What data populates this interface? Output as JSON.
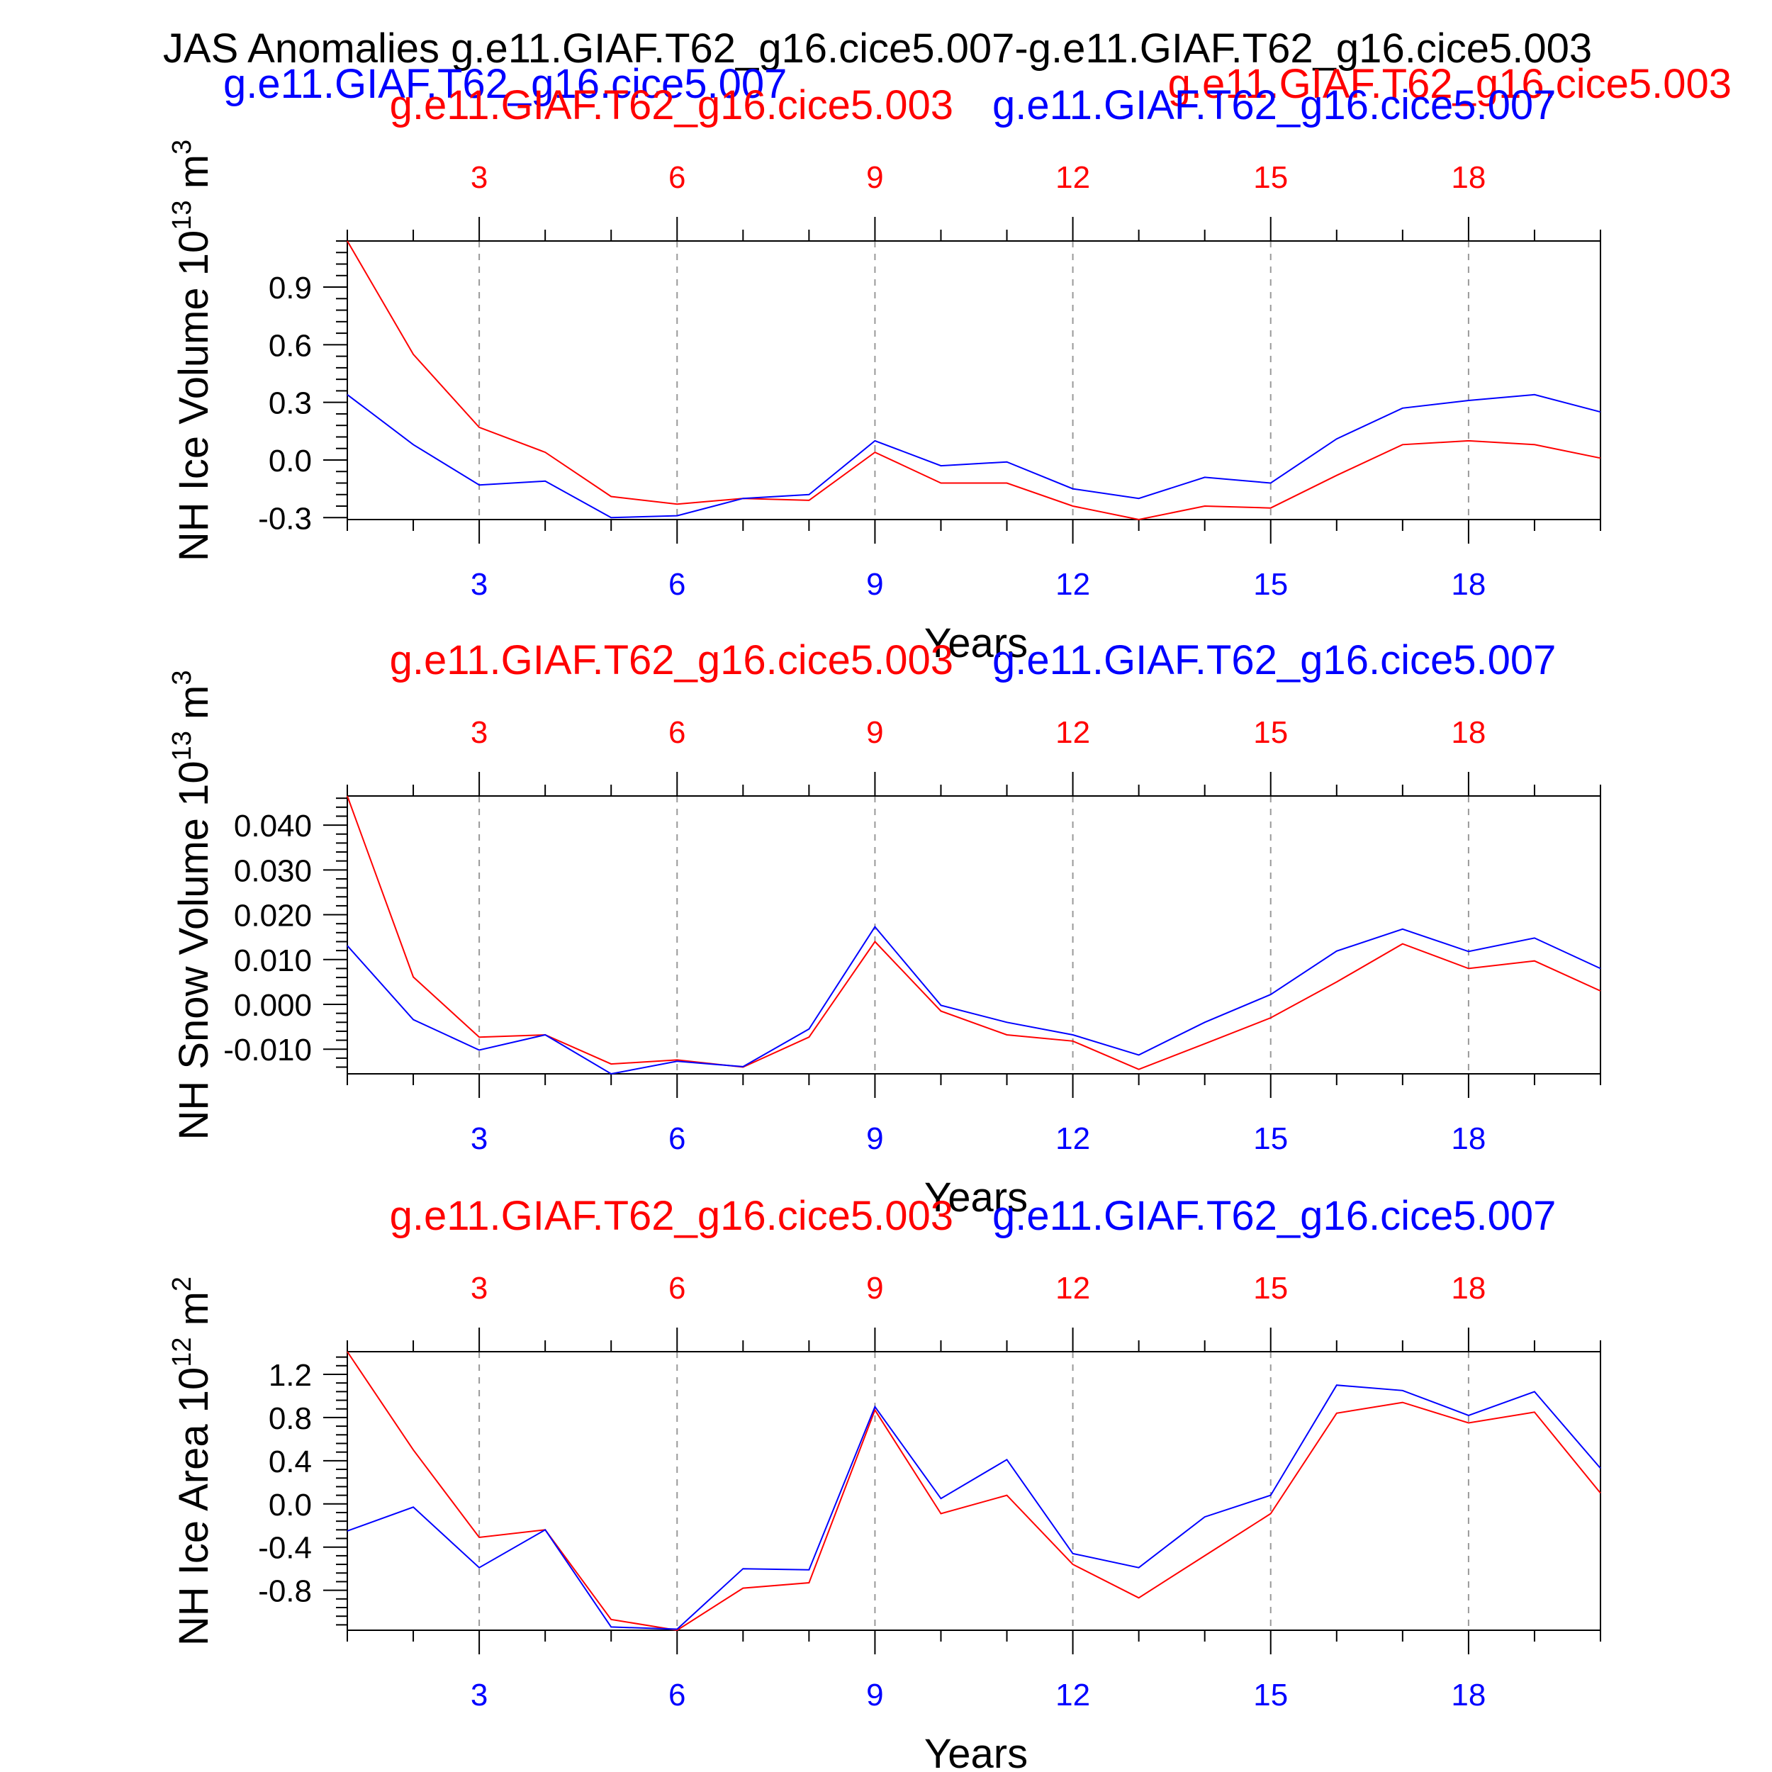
{
  "page": {
    "title": "JAS Anomalies g.e11.GIAF.T62_g16.cice5.007-g.e11.GIAF.T62_g16.cice5.003",
    "legend_top_left": "g.e11.GIAF.T62_g16.cice5.007",
    "legend_top_right": "g.e11.GIAF.T62_g16.cice5.003"
  },
  "colors": {
    "case_a": "#ff0000",
    "case_b": "#0000ff",
    "axis": "#000000",
    "grid": "#999999"
  },
  "chart_data": [
    {
      "type": "line",
      "name": "nh-ice-volume",
      "ylabel": "NH Ice Volume 10",
      "ylabel_exp": "13",
      "ylabel_unit": "m",
      "ylabel_unit_exp": "3",
      "xlabel": "Years",
      "legend_left": "g.e11.GIAF.T62_g16.cice5.003",
      "legend_right": "g.e11.GIAF.T62_g16.cice5.007",
      "x": [
        1,
        2,
        3,
        4,
        5,
        6,
        7,
        8,
        9,
        10,
        11,
        12,
        13,
        14,
        15,
        16,
        17,
        18,
        19,
        20
      ],
      "xlim": [
        1,
        20
      ],
      "xticks": [
        3,
        6,
        9,
        12,
        15,
        18
      ],
      "ylim": [
        -0.31,
        1.14
      ],
      "yticks": [
        -0.3,
        0.0,
        0.3,
        0.6,
        0.9
      ],
      "ytick_labels": [
        "-0.3",
        "0.0",
        "0.3",
        "0.6",
        "0.9"
      ],
      "yminor_step": 0.06,
      "series": [
        {
          "name": "g.e11.GIAF.T62_g16.cice5.003",
          "color": "#ff0000",
          "values": [
            1.14,
            0.55,
            0.17,
            0.04,
            -0.19,
            -0.23,
            -0.2,
            -0.21,
            0.04,
            -0.12,
            -0.12,
            -0.24,
            -0.31,
            -0.24,
            -0.25,
            -0.08,
            0.08,
            0.1,
            0.08,
            0.01
          ]
        },
        {
          "name": "g.e11.GIAF.T62_g16.cice5.007",
          "color": "#0000ff",
          "values": [
            0.34,
            0.08,
            -0.13,
            -0.11,
            -0.3,
            -0.29,
            -0.2,
            -0.18,
            0.1,
            -0.03,
            -0.01,
            -0.15,
            -0.2,
            -0.09,
            -0.12,
            0.11,
            0.27,
            0.31,
            0.34,
            0.25
          ]
        }
      ]
    },
    {
      "type": "line",
      "name": "nh-snow-volume",
      "ylabel": "NH Snow Volume 10",
      "ylabel_exp": "13",
      "ylabel_unit": "m",
      "ylabel_unit_exp": "3",
      "xlabel": "Years",
      "legend_left": "g.e11.GIAF.T62_g16.cice5.003",
      "legend_right": "g.e11.GIAF.T62_g16.cice5.007",
      "x": [
        1,
        2,
        3,
        4,
        5,
        6,
        7,
        8,
        9,
        10,
        11,
        12,
        13,
        14,
        15,
        16,
        17,
        18,
        19,
        20
      ],
      "xlim": [
        1,
        20
      ],
      "xticks": [
        3,
        6,
        9,
        12,
        15,
        18
      ],
      "ylim": [
        -0.0155,
        0.0465
      ],
      "yticks": [
        -0.01,
        0.0,
        0.01,
        0.02,
        0.03,
        0.04
      ],
      "ytick_labels": [
        "-0.010",
        "0.000",
        "0.010",
        "0.020",
        "0.030",
        "0.040"
      ],
      "yminor_step": 0.002,
      "series": [
        {
          "name": "g.e11.GIAF.T62_g16.cice5.003",
          "color": "#ff0000",
          "values": [
            0.0465,
            0.0061,
            -0.0073,
            -0.0068,
            -0.0133,
            -0.0124,
            -0.014,
            -0.0073,
            0.014,
            -0.0015,
            -0.0068,
            -0.0082,
            -0.0145,
            -0.0088,
            -0.003,
            0.005,
            0.0135,
            0.008,
            0.0097,
            0.003
          ]
        },
        {
          "name": "g.e11.GIAF.T62_g16.cice5.007",
          "color": "#0000ff",
          "values": [
            0.0131,
            -0.0034,
            -0.0102,
            -0.0068,
            -0.0155,
            -0.0127,
            -0.0139,
            -0.0055,
            0.0173,
            -0.0002,
            -0.004,
            -0.0068,
            -0.0113,
            -0.004,
            0.0022,
            0.0119,
            0.0168,
            0.0118,
            0.0148,
            0.008
          ]
        }
      ]
    },
    {
      "type": "line",
      "name": "nh-ice-area",
      "ylabel": "NH Ice Area 10",
      "ylabel_exp": "12",
      "ylabel_unit": "m",
      "ylabel_unit_exp": "2",
      "xlabel": "Years",
      "legend_left": "g.e11.GIAF.T62_g16.cice5.003",
      "legend_right": "g.e11.GIAF.T62_g16.cice5.007",
      "x": [
        1,
        2,
        3,
        4,
        5,
        6,
        7,
        8,
        9,
        10,
        11,
        12,
        13,
        14,
        15,
        16,
        17,
        18,
        19,
        20
      ],
      "xlim": [
        1,
        20
      ],
      "xticks": [
        3,
        6,
        9,
        12,
        15,
        18
      ],
      "ylim": [
        -1.17,
        1.41
      ],
      "yticks": [
        -0.8,
        -0.4,
        0.0,
        0.4,
        0.8,
        1.2
      ],
      "ytick_labels": [
        "-0.8",
        "-0.4",
        "0.0",
        "0.4",
        "0.8",
        "1.2"
      ],
      "yminor_step": 0.08,
      "series": [
        {
          "name": "g.e11.GIAF.T62_g16.cice5.003",
          "color": "#ff0000",
          "values": [
            1.41,
            0.5,
            -0.31,
            -0.24,
            -1.07,
            -1.17,
            -0.78,
            -0.73,
            0.87,
            -0.09,
            0.08,
            -0.56,
            -0.87,
            -0.48,
            -0.09,
            0.84,
            0.94,
            0.75,
            0.85,
            0.1
          ]
        },
        {
          "name": "g.e11.GIAF.T62_g16.cice5.007",
          "color": "#0000ff",
          "values": [
            -0.25,
            -0.03,
            -0.59,
            -0.24,
            -1.14,
            -1.16,
            -0.6,
            -0.61,
            0.9,
            0.05,
            0.41,
            -0.46,
            -0.59,
            -0.12,
            0.08,
            1.1,
            1.05,
            0.82,
            1.04,
            0.33
          ]
        }
      ]
    }
  ]
}
